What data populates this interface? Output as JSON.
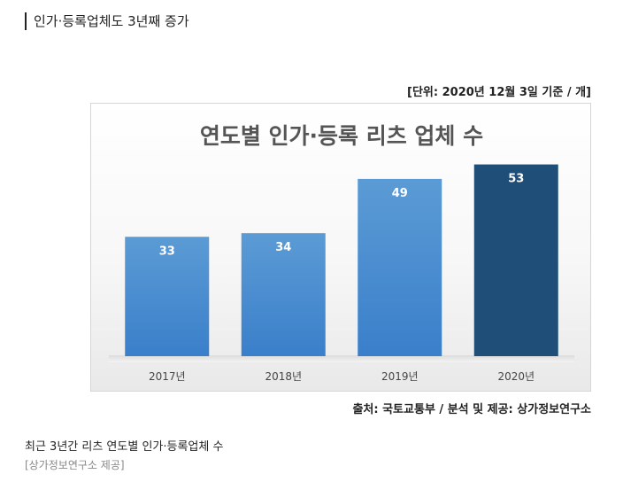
{
  "headline": "인가·등록업체도 3년째 증가",
  "unit_note": "[단위: 2020년 12월 3일 기준 / 개]",
  "source_note": "출처: 국토교통부 / 분석 및 제공: 상가정보연구소",
  "caption": "최근 3년간 리츠 연도별 인가·등록업체 수",
  "credit": "[상가정보연구소 제공]",
  "colors": {
    "bar_light_top": "#5b9bd5",
    "bar_light_bottom": "#3a7fca",
    "bar_highlight": "#1f4e79",
    "value_label": "#ffffff",
    "tick_label": "#444444",
    "title": "#555555"
  },
  "chart_data": {
    "type": "bar",
    "title": "연도별 인가·등록 리츠 업체 수",
    "categories": [
      "2017년",
      "2018년",
      "2019년",
      "2020년"
    ],
    "values": [
      33,
      34,
      49,
      53
    ],
    "data_labels": [
      "33",
      "34",
      "49",
      "53"
    ],
    "highlight_index": 3,
    "ylim": [
      0,
      60
    ],
    "grid": false,
    "legend": "none",
    "xlabel": "",
    "ylabel": ""
  }
}
